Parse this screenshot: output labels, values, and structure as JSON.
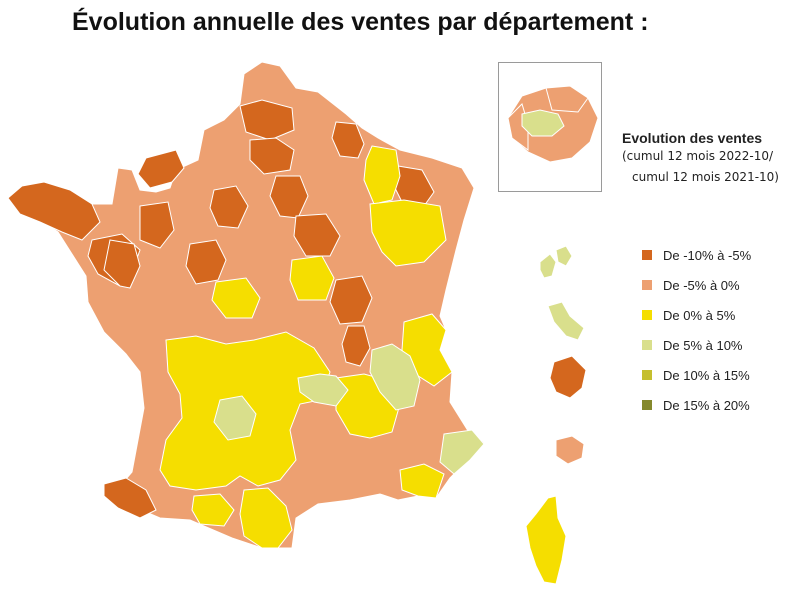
{
  "title": "Évolution annuelle des ventes par département :",
  "legend": {
    "title": "Evolution des ventes",
    "subtitle_line1": "(cumul 12 mois 2022-10/",
    "subtitle_line2": "cumul 12 mois 2021-10)",
    "items": [
      {
        "label": "De -10% à -5%",
        "color": "#d4671e"
      },
      {
        "label": "De -5% à 0%",
        "color": "#eda071"
      },
      {
        "label": "De 0% à 5%",
        "color": "#f5de00"
      },
      {
        "label": "De 5% à 10%",
        "color": "#d9df8c"
      },
      {
        "label": "De 10% à 15%",
        "color": "#c5bf2e"
      },
      {
        "label": "De 15% à 20%",
        "color": "#85892c"
      }
    ]
  }
}
